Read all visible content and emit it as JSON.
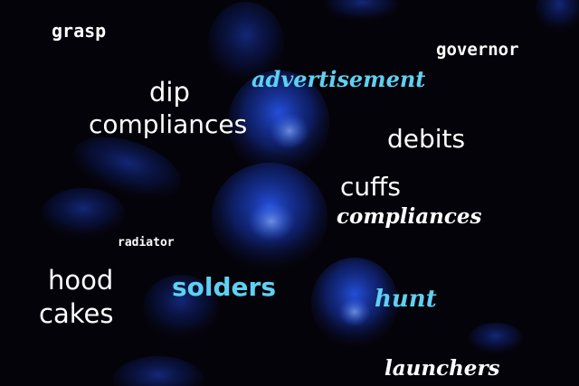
{
  "colors": {
    "background": "#05030a",
    "jellyfish_blue": "#1d4bd6",
    "text_white": "#ffffff",
    "text_cyan": "#5fd0f0"
  },
  "words": {
    "grasp": "grasp",
    "governor": "governor",
    "advertisement": "advertisement",
    "dip": "dip",
    "compliances_1": "compliances",
    "debits": "debits",
    "cuffs": "cuffs",
    "compliances_2": "compliances",
    "radiator": "radiator",
    "hood": "hood",
    "cakes": "cakes",
    "solders": "solders",
    "hunt": "hunt",
    "launchers": "launchers"
  }
}
